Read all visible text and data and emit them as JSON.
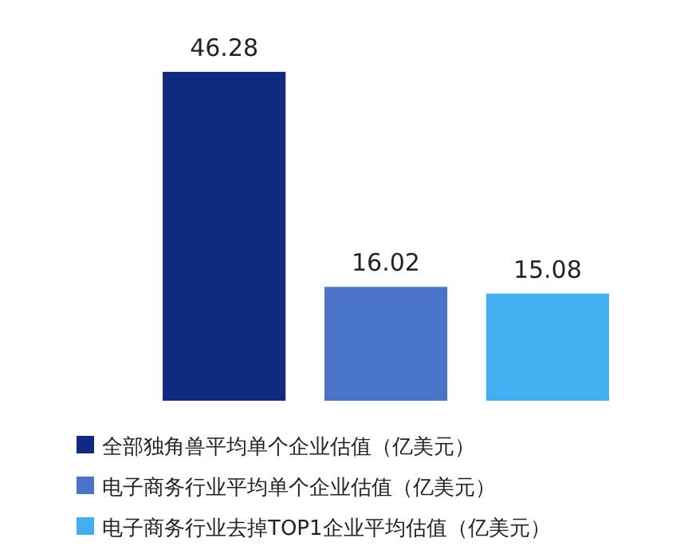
{
  "chart_data": {
    "type": "bar",
    "categories": [
      null
    ],
    "series": [
      {
        "name": "全部独角兽平均单个企业估值（亿美元）",
        "color": "#0f2a80",
        "values": [
          46.28
        ]
      },
      {
        "name": "电子商务行业平均单个企业估值（亿美元）",
        "color": "#4a74c9",
        "values": [
          16.02
        ]
      },
      {
        "name": "电子商务行业去掉TOP1企业平均估值（亿美元）",
        "color": "#42b0f0",
        "values": [
          15.08
        ]
      }
    ],
    "data_labels": true,
    "legend": "bottom"
  }
}
